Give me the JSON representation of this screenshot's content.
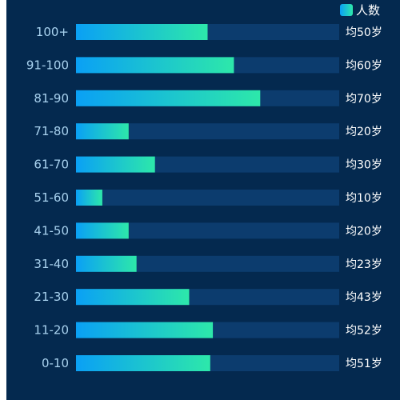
{
  "colors": {
    "background": "#04294f",
    "track": "#0c3c6e",
    "gradient_start": "#0aa0f5",
    "gradient_end": "#2de8aa",
    "category_text": "#a9d2ef",
    "label_text": "#ffffff"
  },
  "chart_data": {
    "type": "bar",
    "orientation": "horizontal",
    "legend": {
      "position": "top-right",
      "entries": [
        "人数"
      ]
    },
    "categories": [
      "100+",
      "91-100",
      "81-90",
      "71-80",
      "61-70",
      "51-60",
      "41-50",
      "31-40",
      "21-30",
      "11-20",
      "0-10"
    ],
    "series": [
      {
        "name": "人数",
        "values": [
          50,
          60,
          70,
          20,
          30,
          10,
          20,
          23,
          43,
          52,
          51
        ]
      }
    ],
    "right_labels": [
      "均50岁",
      "均60岁",
      "均70岁",
      "均20岁",
      "均30岁",
      "均10岁",
      "均20岁",
      "均23岁",
      "均43岁",
      "均52岁",
      "均51岁"
    ],
    "xlim": [
      0,
      100
    ],
    "grid": false
  }
}
